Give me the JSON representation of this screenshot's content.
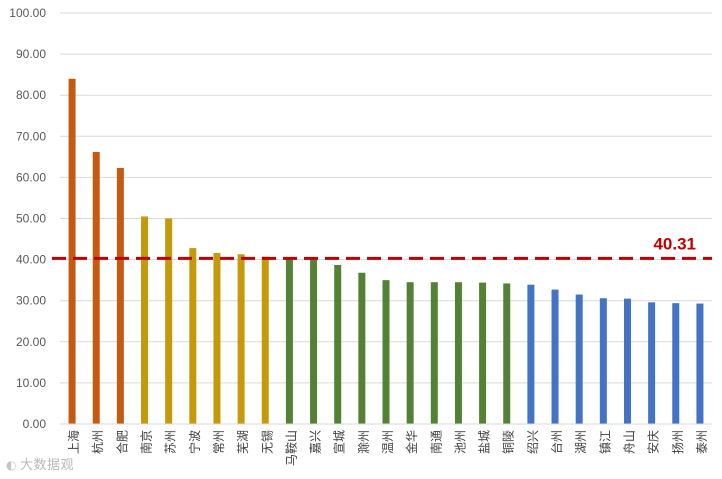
{
  "chart_data": {
    "type": "bar",
    "title": "",
    "xlabel": "",
    "ylabel": "",
    "ylim": [
      0,
      100
    ],
    "y_ticks": [
      "0.00",
      "10.00",
      "20.00",
      "30.00",
      "40.00",
      "50.00",
      "60.00",
      "70.00",
      "80.00",
      "90.00",
      "100.00"
    ],
    "grid": true,
    "legend": "none",
    "categories": [
      "上海",
      "杭州",
      "合肥",
      "南京",
      "苏州",
      "宁波",
      "常州",
      "芜湖",
      "无锡",
      "马鞍山",
      "嘉兴",
      "宣城",
      "滁州",
      "温州",
      "金华",
      "南通",
      "池州",
      "盐城",
      "铜陵",
      "绍兴",
      "台州",
      "湖州",
      "镇江",
      "舟山",
      "安庆",
      "扬州",
      "泰州"
    ],
    "values": [
      84.0,
      66.2,
      62.3,
      50.5,
      50.0,
      42.8,
      41.6,
      41.3,
      40.7,
      40.0,
      40.0,
      38.7,
      36.8,
      35.0,
      34.5,
      34.5,
      34.5,
      34.4,
      34.2,
      33.9,
      32.7,
      31.5,
      30.6,
      30.5,
      29.6,
      29.4,
      29.3
    ],
    "colors": [
      "#c55a11",
      "#c55a11",
      "#c55a11",
      "#c49a0a",
      "#c49a0a",
      "#c49a0a",
      "#c49a0a",
      "#c49a0a",
      "#c49a0a",
      "#548235",
      "#548235",
      "#548235",
      "#548235",
      "#548235",
      "#548235",
      "#548235",
      "#548235",
      "#548235",
      "#548235",
      "#4472c4",
      "#4472c4",
      "#4472c4",
      "#4472c4",
      "#4472c4",
      "#4472c4",
      "#4472c4",
      "#4472c4"
    ],
    "reference_line": {
      "value": 40.31,
      "label": "40.31",
      "color": "#c00000",
      "style": "dashed"
    }
  },
  "watermark": {
    "icon": "logo-icon",
    "text": "大数据观"
  }
}
